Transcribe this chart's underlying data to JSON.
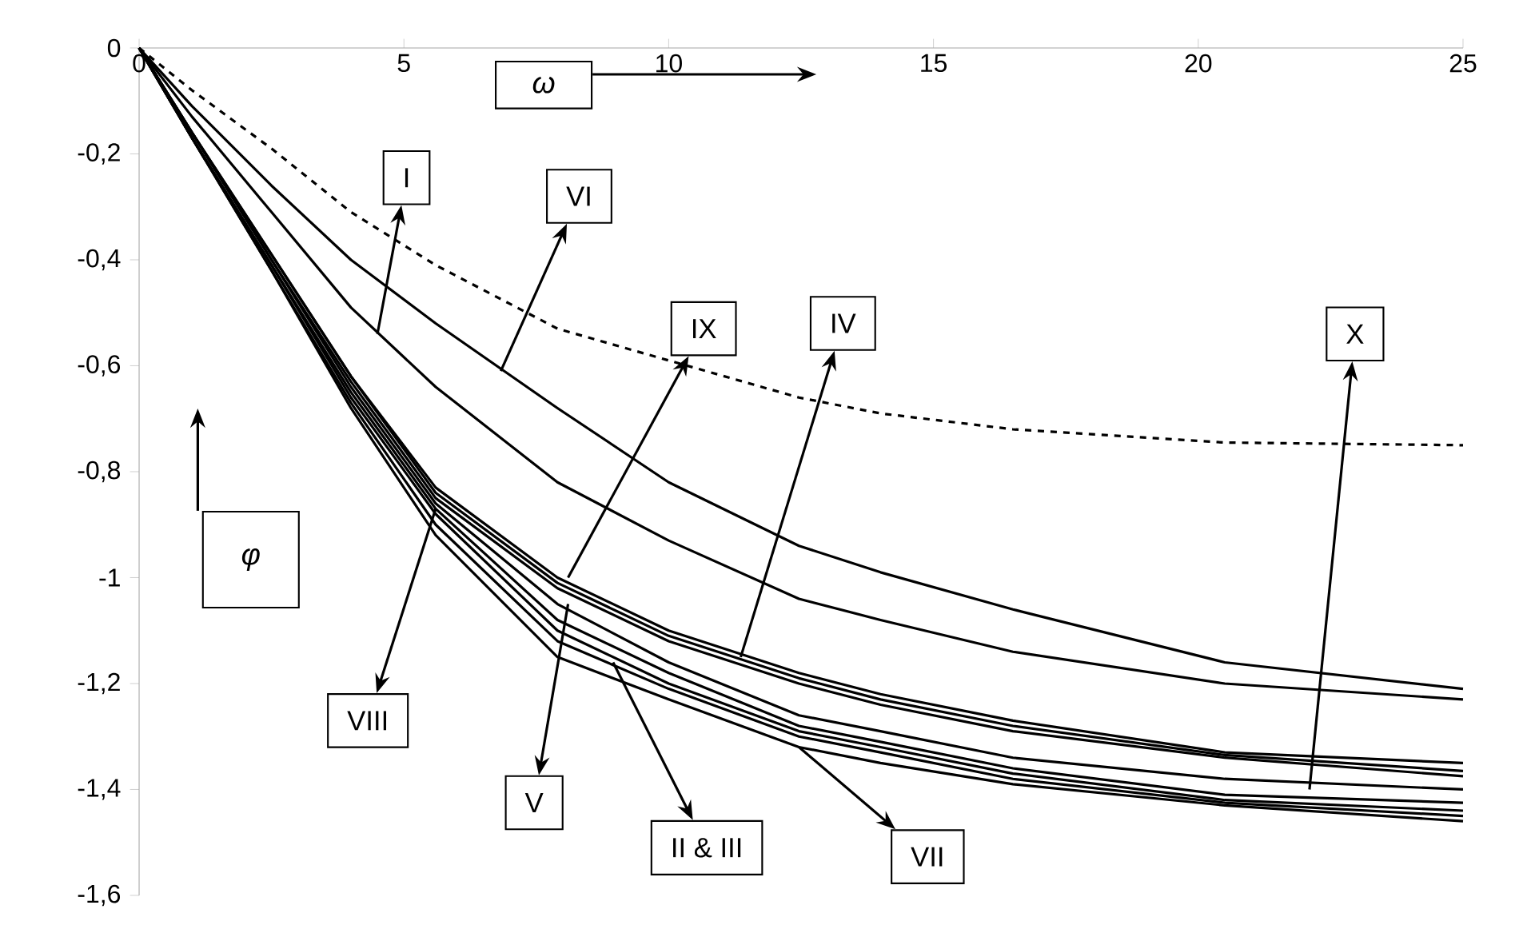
{
  "chart_data": {
    "type": "line",
    "xlabel": "ω",
    "ylabel": "φ",
    "x": [
      0,
      1,
      2.5,
      4,
      5.6,
      7.9,
      10,
      12.46,
      14,
      16.5,
      20.5,
      25
    ],
    "series": [
      {
        "color": "#000000",
        "line_style": "dashed",
        "values": [
          0,
          -0.08,
          -0.19,
          -0.31,
          -0.41,
          -0.53,
          -0.59,
          -0.66,
          -0.69,
          -0.72,
          -0.745,
          -0.75
        ]
      },
      {
        "color": "#000000",
        "line_style": "solid",
        "values": [
          0,
          -0.11,
          -0.26,
          -0.4,
          -0.52,
          -0.68,
          -0.82,
          -0.94,
          -0.99,
          -1.06,
          -1.16,
          -1.21
        ]
      },
      {
        "color": "#000000",
        "line_style": "solid",
        "values": [
          0,
          -0.13,
          -0.31,
          -0.49,
          -0.64,
          -0.82,
          -0.93,
          -1.04,
          -1.08,
          -1.14,
          -1.2,
          -1.23
        ]
      },
      {
        "color": "#000000",
        "line_style": "solid",
        "values": [
          0,
          -0.16,
          -0.39,
          -0.62,
          -0.83,
          -1.0,
          -1.1,
          -1.18,
          -1.22,
          -1.27,
          -1.33,
          -1.35
        ]
      },
      {
        "color": "#000000",
        "line_style": "solid",
        "values": [
          0,
          -0.16,
          -0.39,
          -0.62,
          -0.84,
          -1.01,
          -1.11,
          -1.19,
          -1.23,
          -1.28,
          -1.335,
          -1.365
        ]
      },
      {
        "color": "#000000",
        "line_style": "solid",
        "values": [
          0,
          -0.16,
          -0.4,
          -0.63,
          -0.85,
          -1.02,
          -1.12,
          -1.2,
          -1.24,
          -1.29,
          -1.34,
          -1.375
        ]
      },
      {
        "color": "#000000",
        "line_style": "solid",
        "values": [
          0,
          -0.16,
          -0.4,
          -0.64,
          -0.86,
          -1.05,
          -1.16,
          -1.26,
          -1.29,
          -1.34,
          -1.38,
          -1.4
        ]
      },
      {
        "color": "#000000",
        "line_style": "solid",
        "values": [
          0,
          -0.17,
          -0.41,
          -0.65,
          -0.87,
          -1.08,
          -1.18,
          -1.28,
          -1.31,
          -1.36,
          -1.41,
          -1.425
        ]
      },
      {
        "color": "#000000",
        "line_style": "solid",
        "values": [
          0,
          -0.17,
          -0.41,
          -0.66,
          -0.88,
          -1.1,
          -1.2,
          -1.29,
          -1.32,
          -1.37,
          -1.42,
          -1.44
        ]
      },
      {
        "color": "#000000",
        "line_style": "solid",
        "values": [
          0,
          -0.17,
          -0.42,
          -0.67,
          -0.9,
          -1.12,
          -1.21,
          -1.3,
          -1.33,
          -1.38,
          -1.425,
          -1.45
        ]
      },
      {
        "color": "#000000",
        "line_style": "solid",
        "values": [
          0,
          -0.17,
          -0.42,
          -0.68,
          -0.92,
          -1.15,
          -1.23,
          -1.32,
          -1.35,
          -1.39,
          -1.43,
          -1.46
        ]
      }
    ],
    "xlim": [
      0,
      25
    ],
    "ylim": [
      -1.6,
      0
    ],
    "xticks": [
      0,
      5,
      10,
      15,
      20,
      25
    ],
    "yticks": [
      0,
      {
        "value": -0.2,
        "label": "-0,2"
      },
      {
        "value": -0.4,
        "label": "-0,4"
      },
      {
        "value": -0.6,
        "label": "-0,6"
      },
      {
        "value": -0.8,
        "label": "-0,8"
      },
      {
        "value": -1,
        "label": "-1"
      },
      {
        "value": -1.2,
        "label": "-1,2"
      },
      {
        "value": -1.4,
        "label": "-1,4"
      },
      {
        "value": -1.6,
        "label": "-1,6"
      }
    ],
    "annotations": [
      {
        "text": "I",
        "x": 4.5,
        "y": -0.54
      },
      {
        "text": "VI",
        "x": 6.83,
        "y": -0.61
      },
      {
        "text": "IX",
        "x": 8.1,
        "y": -1.0
      },
      {
        "text": "IV",
        "x": 11.36,
        "y": -1.15
      },
      {
        "text": "X",
        "x": 22.1,
        "y": -1.4
      },
      {
        "text": "VIII",
        "x": 5.6,
        "y": -0.87
      },
      {
        "text": "V",
        "x": 8.1,
        "y": -1.05
      },
      {
        "text": "II & III",
        "x": 8.95,
        "y": -1.16
      },
      {
        "text": "VII",
        "x": 12.46,
        "y": -1.32
      }
    ]
  }
}
